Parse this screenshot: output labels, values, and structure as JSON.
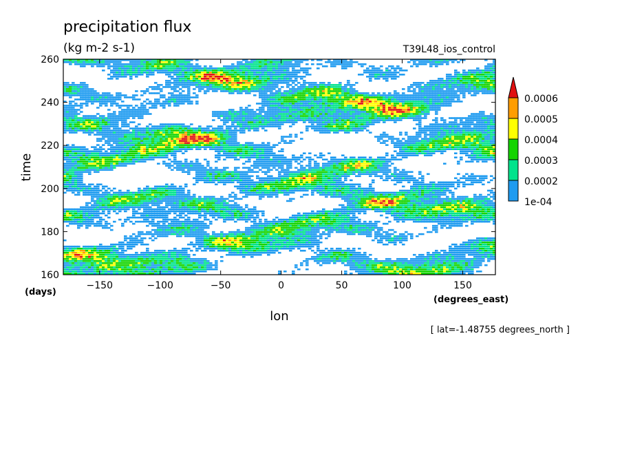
{
  "chart_data": {
    "type": "heatmap",
    "title": "precipitation flux",
    "subtitle": "(kg m-2 s-1)",
    "run_label": "T39L48_ios_control",
    "xlabel": "lon",
    "ylabel": "time",
    "x_units": "(degrees_east)",
    "y_units": "(days)",
    "footer": "[ lat=-1.48755 degrees_north ]",
    "xlim": [
      -180,
      177
    ],
    "ylim": [
      160,
      260
    ],
    "x_ticks": [
      -150,
      -100,
      -50,
      0,
      50,
      100,
      150
    ],
    "y_ticks": [
      160,
      180,
      200,
      220,
      240,
      260
    ],
    "colorbar": {
      "levels": [
        0.0001,
        0.0002,
        0.0003,
        0.0004,
        0.0005,
        0.0006
      ],
      "labels": [
        "1e-04",
        "0.0002",
        "0.0003",
        "0.0004",
        "0.0005",
        "0.0006"
      ],
      "colors": [
        "#1e9bf0",
        "#00e38c",
        "#14d400",
        "#ffff00",
        "#ff9d00",
        "#e01010"
      ]
    },
    "grid": false
  }
}
